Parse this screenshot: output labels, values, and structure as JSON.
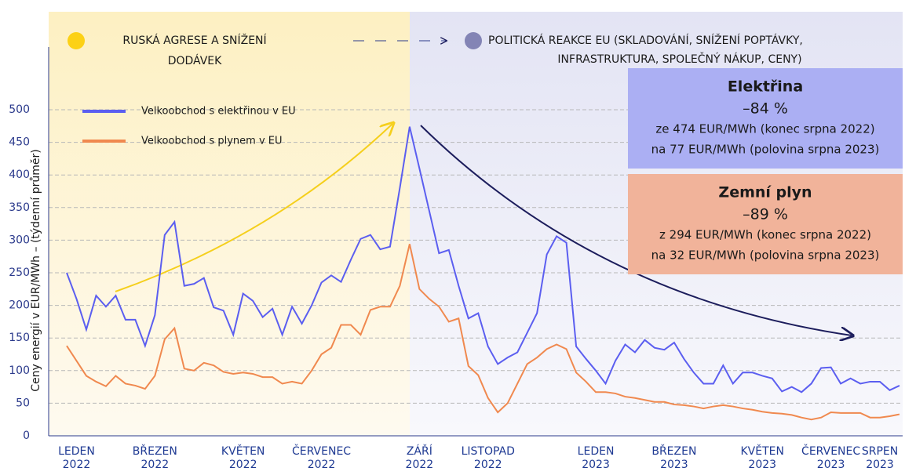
{
  "chart_data": {
    "type": "line",
    "y_label": "Ceny energií v EUR/MWh – (týdenní průměr)",
    "header_left": [
      "RUSKÁ AGRESE A SNÍŽENÍ",
      "DODÁVEK"
    ],
    "header_right": [
      "POLITICKÁ REAKCE EU (SKLADOVÁNÍ, SNÍŽENÍ POPTÁVKY,",
      "INFRASTRUKTURA, SPOLEČNÝ NÁKUP, CENY)"
    ],
    "boxes": [
      {
        "title": "Elektřina",
        "change": "–84 %",
        "lines": [
          "ze 474 EUR/MWh (konec srpna 2022)",
          "na 77 EUR/MWh (polovina srpna 2023)"
        ],
        "color": "#abaff3"
      },
      {
        "title": "Zemní plyn",
        "change": "–89 %",
        "lines": [
          "z 294 EUR/MWh (konec srpna 2022)",
          "na 32 EUR/MWh (polovina srpna 2023)"
        ],
        "color": "#f1b39a"
      }
    ],
    "categories": [
      null,
      "LEDEN 2022",
      null,
      null,
      null,
      null,
      null,
      null,
      null,
      "BŘEZEN 2022",
      null,
      null,
      null,
      null,
      null,
      null,
      null,
      null,
      "KVĚTEN 2022",
      null,
      null,
      null,
      null,
      null,
      null,
      null,
      "ČERVENEC 2022",
      null,
      null,
      null,
      null,
      null,
      null,
      null,
      null,
      null,
      "ZÁŘÍ 2022",
      null,
      null,
      null,
      null,
      null,
      null,
      "LISTOPAD 2022",
      null,
      null,
      null,
      null,
      null,
      null,
      null,
      null,
      null,
      null,
      "LEDEN 2023",
      null,
      null,
      null,
      null,
      null,
      null,
      null,
      "BŘEZEN 2023",
      null,
      null,
      null,
      null,
      null,
      null,
      null,
      null,
      "KVĚTEN 2023",
      null,
      null,
      null,
      null,
      null,
      null,
      "ČERVENEC 2023",
      null,
      null,
      null,
      null,
      "SRPEN 2023",
      null,
      null
    ],
    "series": [
      {
        "name": "Velkoobchod s elektřinou v EU",
        "color": "#5b5ef0",
        "values": [
          250,
          210,
          163,
          215,
          198,
          215,
          178,
          178,
          138,
          185,
          308,
          328,
          230,
          233,
          242,
          197,
          192,
          155,
          218,
          207,
          182,
          195,
          155,
          198,
          172,
          200,
          235,
          246,
          236,
          270,
          302,
          308,
          286,
          290,
          380,
          474,
          410,
          345,
          280,
          285,
          230,
          180,
          188,
          137,
          110,
          120,
          128,
          158,
          188,
          278,
          306,
          296,
          137,
          118,
          100,
          80,
          115,
          140,
          128,
          147,
          135,
          132,
          143,
          118,
          97,
          80,
          80,
          108,
          80,
          97,
          97,
          92,
          88,
          68,
          75,
          67,
          80,
          104,
          105,
          80,
          88,
          80,
          83,
          83,
          70,
          77
        ]
      },
      {
        "name": "Velkoobchod s plynem v EU",
        "color": "#f0894f",
        "values": [
          138,
          115,
          92,
          83,
          76,
          92,
          80,
          77,
          72,
          92,
          148,
          165,
          103,
          100,
          112,
          108,
          98,
          95,
          97,
          95,
          90,
          90,
          80,
          83,
          80,
          100,
          125,
          135,
          170,
          170,
          155,
          193,
          198,
          198,
          230,
          294,
          225,
          210,
          198,
          175,
          180,
          107,
          93,
          58,
          36,
          50,
          80,
          110,
          120,
          133,
          140,
          133,
          97,
          83,
          67,
          67,
          65,
          60,
          58,
          55,
          52,
          52,
          48,
          47,
          45,
          42,
          45,
          47,
          45,
          42,
          40,
          37,
          35,
          34,
          32,
          28,
          25,
          28,
          36,
          35,
          35,
          35,
          28,
          28,
          30,
          33
        ]
      }
    ],
    "ylim": [
      0,
      500
    ],
    "yticks": [
      0,
      50,
      100,
      150,
      200,
      250,
      300,
      350,
      400,
      450,
      500
    ],
    "grid": true
  }
}
